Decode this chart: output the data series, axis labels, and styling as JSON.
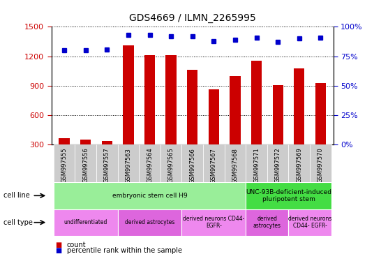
{
  "title": "GDS4669 / ILMN_2265995",
  "samples": [
    "GSM997555",
    "GSM997556",
    "GSM997557",
    "GSM997563",
    "GSM997564",
    "GSM997565",
    "GSM997566",
    "GSM997567",
    "GSM997568",
    "GSM997571",
    "GSM997572",
    "GSM997569",
    "GSM997570"
  ],
  "counts": [
    370,
    355,
    340,
    1310,
    1215,
    1215,
    1060,
    865,
    1000,
    1155,
    905,
    1080,
    930
  ],
  "percentiles": [
    80,
    80,
    81,
    93,
    93,
    92,
    92,
    88,
    89,
    91,
    87,
    90,
    91
  ],
  "bar_color": "#cc0000",
  "dot_color": "#0000cc",
  "ylim_left": [
    300,
    1500
  ],
  "ylim_right": [
    0,
    100
  ],
  "yticks_left": [
    300,
    600,
    900,
    1200,
    1500
  ],
  "yticks_right": [
    0,
    25,
    50,
    75,
    100
  ],
  "cell_line_data": [
    {
      "label": "embryonic stem cell H9",
      "start": 0,
      "end": 9,
      "color": "#99ee99"
    },
    {
      "label": "UNC-93B-deficient-induced\npluripotent stem",
      "start": 9,
      "end": 13,
      "color": "#44dd44"
    }
  ],
  "cell_type_data": [
    {
      "label": "undifferentiated",
      "start": 0,
      "end": 3,
      "color": "#ee88ee"
    },
    {
      "label": "derived astrocytes",
      "start": 3,
      "end": 6,
      "color": "#dd66dd"
    },
    {
      "label": "derived neurons CD44-\nEGFR-",
      "start": 6,
      "end": 9,
      "color": "#ee88ee"
    },
    {
      "label": "derived\nastrocytes",
      "start": 9,
      "end": 11,
      "color": "#dd66dd"
    },
    {
      "label": "derived neurons\nCD44- EGFR-",
      "start": 11,
      "end": 13,
      "color": "#ee88ee"
    }
  ],
  "legend_count_color": "#cc0000",
  "legend_dot_color": "#0000cc",
  "xtick_bg_color": "#cccccc",
  "bar_width": 0.5
}
